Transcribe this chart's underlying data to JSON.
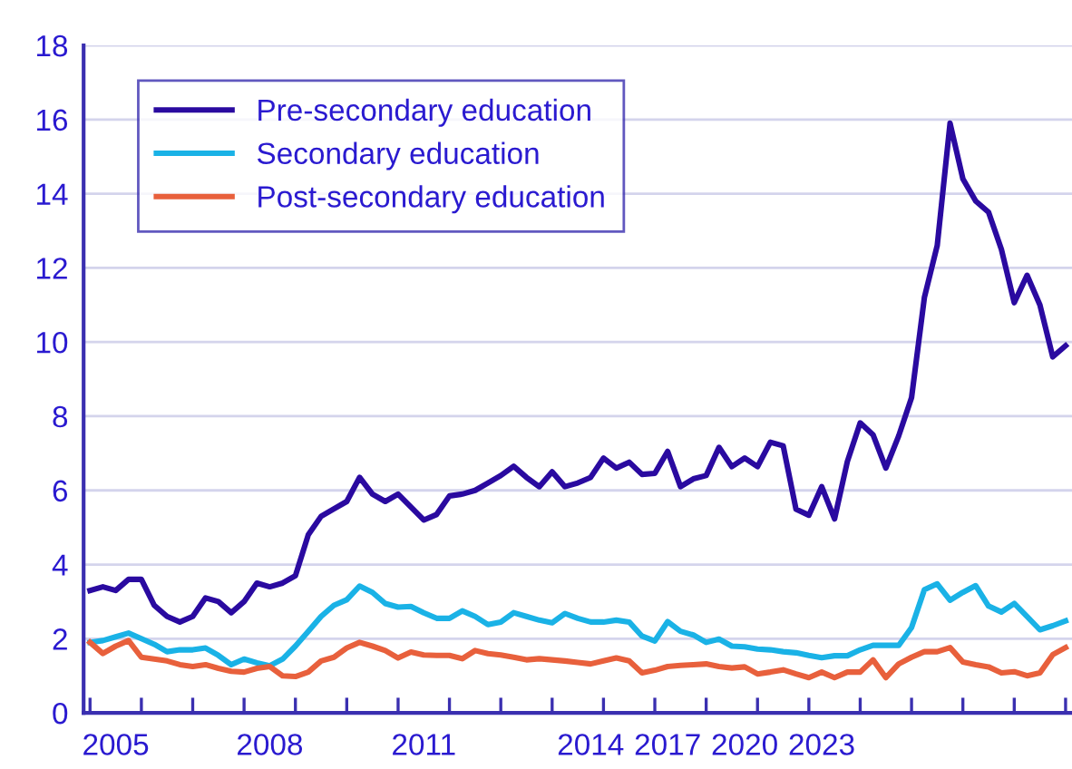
{
  "chart_data": {
    "type": "line",
    "categories": [
      null,
      null,
      "2005",
      null,
      null,
      null,
      null,
      null,
      null,
      null,
      null,
      null,
      null,
      null,
      "2008",
      null,
      null,
      null,
      null,
      null,
      null,
      null,
      null,
      null,
      null,
      null,
      "2011",
      null,
      null,
      null,
      null,
      null,
      null,
      null,
      null,
      null,
      null,
      null,
      null,
      "2014",
      null,
      null,
      null,
      null,
      null,
      "2017",
      null,
      null,
      null,
      null,
      null,
      "2020",
      null,
      null,
      null,
      null,
      null,
      "2023",
      null,
      null,
      null,
      null,
      null,
      null,
      null,
      null,
      null,
      null,
      null,
      null,
      null,
      null,
      null,
      null,
      null,
      null,
      null
    ],
    "series": [
      {
        "name": "Pre-secondary education",
        "color": "#2a0aa0",
        "values": [
          3.3,
          3.4,
          3.3,
          3.6,
          3.6,
          2.9,
          2.6,
          2.45,
          2.6,
          3.1,
          3.0,
          2.7,
          3.0,
          3.5,
          3.4,
          3.5,
          3.7,
          4.8,
          5.3,
          5.5,
          5.7,
          6.35,
          5.9,
          5.7,
          5.9,
          5.55,
          5.2,
          5.35,
          5.85,
          5.9,
          6.0,
          6.2,
          6.4,
          6.65,
          6.35,
          6.1,
          6.5,
          6.1,
          6.2,
          6.35,
          6.87,
          6.6,
          6.76,
          6.43,
          6.46,
          7.05,
          6.1,
          6.31,
          6.4,
          7.16,
          6.64,
          6.87,
          6.64,
          7.3,
          7.2,
          5.49,
          5.33,
          6.1,
          5.23,
          6.78,
          7.82,
          7.5,
          6.6,
          7.47,
          8.5,
          11.2,
          12.6,
          15.9,
          14.4,
          13.8,
          13.5,
          12.5,
          11.06,
          11.8,
          11.0,
          9.6,
          9.9
        ]
      },
      {
        "name": "Secondary education",
        "color": "#1ab2e6",
        "values": [
          1.9,
          1.95,
          2.05,
          2.15,
          2.0,
          1.85,
          1.65,
          1.7,
          1.7,
          1.75,
          1.55,
          1.3,
          1.45,
          1.35,
          1.27,
          1.45,
          1.8,
          2.2,
          2.6,
          2.9,
          3.05,
          3.42,
          3.25,
          2.95,
          2.85,
          2.87,
          2.7,
          2.55,
          2.55,
          2.75,
          2.6,
          2.38,
          2.45,
          2.7,
          2.6,
          2.5,
          2.43,
          2.68,
          2.55,
          2.45,
          2.45,
          2.5,
          2.45,
          2.07,
          1.94,
          2.46,
          2.2,
          2.1,
          1.9,
          1.99,
          1.8,
          1.78,
          1.72,
          1.7,
          1.65,
          1.62,
          1.55,
          1.49,
          1.54,
          1.54,
          1.7,
          1.82,
          1.82,
          1.82,
          2.3,
          3.32,
          3.48,
          3.04,
          3.25,
          3.43,
          2.88,
          2.72,
          2.95,
          2.6,
          2.24,
          2.35,
          2.48
        ]
      },
      {
        "name": "Post-secondary education",
        "color": "#e8603c",
        "values": [
          1.9,
          1.6,
          1.8,
          1.95,
          1.5,
          1.45,
          1.4,
          1.3,
          1.25,
          1.3,
          1.2,
          1.12,
          1.1,
          1.2,
          1.25,
          1.0,
          0.98,
          1.1,
          1.4,
          1.5,
          1.75,
          1.9,
          1.8,
          1.68,
          1.48,
          1.64,
          1.56,
          1.55,
          1.55,
          1.46,
          1.68,
          1.6,
          1.56,
          1.5,
          1.43,
          1.46,
          1.43,
          1.4,
          1.36,
          1.32,
          1.4,
          1.48,
          1.4,
          1.08,
          1.15,
          1.25,
          1.28,
          1.3,
          1.32,
          1.25,
          1.21,
          1.24,
          1.05,
          1.1,
          1.16,
          1.05,
          0.95,
          1.1,
          0.95,
          1.1,
          1.1,
          1.43,
          0.95,
          1.32,
          1.5,
          1.65,
          1.65,
          1.76,
          1.37,
          1.3,
          1.24,
          1.08,
          1.11,
          1.0,
          1.08,
          1.57,
          1.76
        ]
      }
    ],
    "ylim": [
      0,
      18
    ],
    "yticks": [
      0,
      2,
      4,
      6,
      8,
      10,
      12,
      14,
      16,
      18
    ],
    "grid": "y",
    "legend": "top left",
    "marker": "none",
    "line_style": "solid"
  }
}
